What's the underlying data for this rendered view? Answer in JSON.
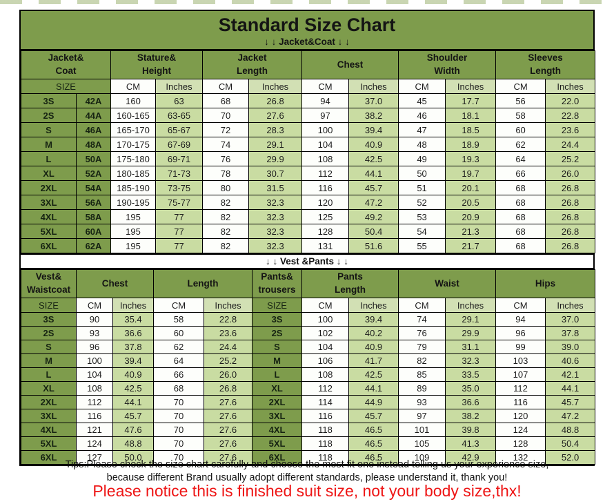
{
  "page": {
    "title": "Standard Size Chart",
    "jacket_banner": "↓ ↓  Jacket&Coat ↓ ↓",
    "vest_banner": "↓ ↓  Vest &Pants ↓ ↓",
    "tips_line1": "Tips:Please check the size chart carefully and choose the most fit one instead telling us your experience size,",
    "tips_line2": "because different Brand usually adopt different standards, please understand it, thank you!",
    "notice": "Please notice this is finished suit size, not your body size,thx!"
  },
  "labels": {
    "size": "SIZE",
    "cm": "CM",
    "inches": "Inches"
  },
  "colors": {
    "header_green": "#7e9c4c",
    "cell_green": "#c9dca2",
    "unit_green": "#d2e0b4",
    "cell_white": "#fdfefb",
    "text": "#1c1c1c",
    "notice_red": "#ee1515",
    "border": "#000000"
  },
  "jacket_table": {
    "group_headers": [
      "Jacket&\nCoat",
      "Stature&\nHeight",
      "Jacket\nLength",
      "Chest",
      "Shoulder\nWidth",
      "Sleeves\nLength"
    ],
    "rows": [
      [
        "3S",
        "42A",
        "160",
        "63",
        "68",
        "26.8",
        "94",
        "37.0",
        "45",
        "17.7",
        "56",
        "22.0"
      ],
      [
        "2S",
        "44A",
        "160-165",
        "63-65",
        "70",
        "27.6",
        "97",
        "38.2",
        "46",
        "18.1",
        "58",
        "22.8"
      ],
      [
        "S",
        "46A",
        "165-170",
        "65-67",
        "72",
        "28.3",
        "100",
        "39.4",
        "47",
        "18.5",
        "60",
        "23.6"
      ],
      [
        "M",
        "48A",
        "170-175",
        "67-69",
        "74",
        "29.1",
        "104",
        "40.9",
        "48",
        "18.9",
        "62",
        "24.4"
      ],
      [
        "L",
        "50A",
        "175-180",
        "69-71",
        "76",
        "29.9",
        "108",
        "42.5",
        "49",
        "19.3",
        "64",
        "25.2"
      ],
      [
        "XL",
        "52A",
        "180-185",
        "71-73",
        "78",
        "30.7",
        "112",
        "44.1",
        "50",
        "19.7",
        "66",
        "26.0"
      ],
      [
        "2XL",
        "54A",
        "185-190",
        "73-75",
        "80",
        "31.5",
        "116",
        "45.7",
        "51",
        "20.1",
        "68",
        "26.8"
      ],
      [
        "3XL",
        "56A",
        "190-195",
        "75-77",
        "82",
        "32.3",
        "120",
        "47.2",
        "52",
        "20.5",
        "68",
        "26.8"
      ],
      [
        "4XL",
        "58A",
        "195",
        "77",
        "82",
        "32.3",
        "125",
        "49.2",
        "53",
        "20.9",
        "68",
        "26.8"
      ],
      [
        "5XL",
        "60A",
        "195",
        "77",
        "82",
        "32.3",
        "128",
        "50.4",
        "54",
        "21.3",
        "68",
        "26.8"
      ],
      [
        "6XL",
        "62A",
        "195",
        "77",
        "82",
        "32.3",
        "131",
        "51.6",
        "55",
        "21.7",
        "68",
        "26.8"
      ]
    ]
  },
  "vest_table": {
    "group_headers": [
      "Vest&\nWaistcoat",
      "Chest",
      "Length",
      "Pants&\ntrousers",
      "Pants\nLength",
      "Waist",
      "Hips"
    ],
    "rows": [
      [
        "3S",
        "90",
        "35.4",
        "58",
        "22.8",
        "3S",
        "100",
        "39.4",
        "74",
        "29.1",
        "94",
        "37.0"
      ],
      [
        "2S",
        "93",
        "36.6",
        "60",
        "23.6",
        "2S",
        "102",
        "40.2",
        "76",
        "29.9",
        "96",
        "37.8"
      ],
      [
        "S",
        "96",
        "37.8",
        "62",
        "24.4",
        "S",
        "104",
        "40.9",
        "79",
        "31.1",
        "99",
        "39.0"
      ],
      [
        "M",
        "100",
        "39.4",
        "64",
        "25.2",
        "M",
        "106",
        "41.7",
        "82",
        "32.3",
        "103",
        "40.6"
      ],
      [
        "L",
        "104",
        "40.9",
        "66",
        "26.0",
        "L",
        "108",
        "42.5",
        "85",
        "33.5",
        "107",
        "42.1"
      ],
      [
        "XL",
        "108",
        "42.5",
        "68",
        "26.8",
        "XL",
        "112",
        "44.1",
        "89",
        "35.0",
        "112",
        "44.1"
      ],
      [
        "2XL",
        "112",
        "44.1",
        "70",
        "27.6",
        "2XL",
        "114",
        "44.9",
        "93",
        "36.6",
        "116",
        "45.7"
      ],
      [
        "3XL",
        "116",
        "45.7",
        "70",
        "27.6",
        "3XL",
        "116",
        "45.7",
        "97",
        "38.2",
        "120",
        "47.2"
      ],
      [
        "4XL",
        "121",
        "47.6",
        "70",
        "27.6",
        "4XL",
        "118",
        "46.5",
        "101",
        "39.8",
        "124",
        "48.8"
      ],
      [
        "5XL",
        "124",
        "48.8",
        "70",
        "27.6",
        "5XL",
        "118",
        "46.5",
        "105",
        "41.3",
        "128",
        "50.4"
      ],
      [
        "6XL",
        "127",
        "50.0",
        "70",
        "27.6",
        "6XL",
        "118",
        "46.5",
        "109",
        "42.9",
        "132",
        "52.0"
      ]
    ]
  }
}
